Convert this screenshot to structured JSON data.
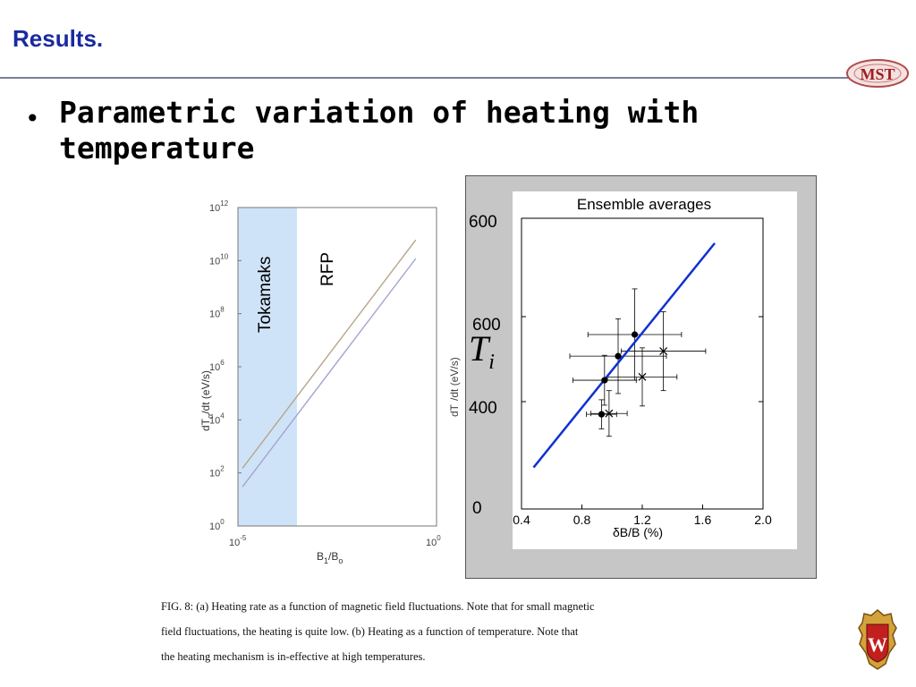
{
  "slide": {
    "title": "Results.",
    "bullet": "Parametric variation of heating with temperature",
    "logo_text": "MST",
    "crest_letter": "W"
  },
  "figure_a": {
    "ylabel": "dT",
    "ylabel_sub": "α",
    "ylabel_rest": "/dt   (eV/s)",
    "xlabel_main": "B",
    "xlabel_sub1": "1",
    "xlabel_mid": "/B",
    "xlabel_sub2": "o",
    "region_tokamak": "Tokamaks",
    "region_rfp": "RFP",
    "ytick_base": "10",
    "yticks_exp": [
      "0",
      "2",
      "4",
      "6",
      "8",
      "10",
      "12"
    ],
    "xticks": [
      {
        "base": "10",
        "exp": "-5"
      },
      {
        "base": "10",
        "exp": "0"
      }
    ]
  },
  "figure_b": {
    "title": "Ensemble averages",
    "xlabel": "δB/B (%)",
    "ylabel_fragment": "dT",
    "ylabel_rest": "/dt   (eV/s)",
    "xticks": [
      "0.4",
      "0.8",
      "1.2",
      "1.6",
      "2.0"
    ],
    "overlay_yticks": [
      "600",
      "600",
      "400",
      "0"
    ],
    "ti_label": "T",
    "ti_sub": "i"
  },
  "chart_data": [
    {
      "type": "line",
      "xlabel": "B1/Bo",
      "ylabel": "dTα/dt (eV/s)",
      "xscale": "log",
      "yscale": "log",
      "xlim": [
        1e-05,
        1
      ],
      "ylim": [
        1,
        1000000000000.0
      ],
      "regions": [
        {
          "label": "Tokamaks",
          "color": "#cfe3f8"
        },
        {
          "label": "RFP"
        }
      ],
      "series": [
        {
          "color": "#b5a58a",
          "x": [
            1.3e-05,
            0.3
          ],
          "y": [
            150,
            60000000000.0
          ]
        },
        {
          "color": "#a3a3d0",
          "x": [
            1.3e-05,
            0.3
          ],
          "y": [
            30,
            12000000000.0
          ]
        }
      ]
    },
    {
      "type": "scatter",
      "title": "Ensemble averages",
      "xlabel": "δB/B (%)",
      "xlim": [
        0.4,
        2.0
      ],
      "xticks": [
        0.4,
        0.8,
        1.2,
        1.6,
        2.0
      ],
      "series": [
        {
          "marker": "filled-circle",
          "points": [
            {
              "x": 0.93,
              "y": 228,
              "xerr": 0.1,
              "yerr": 35
            },
            {
              "x": 0.95,
              "y": 310,
              "xerr": 0.21,
              "yerr": 60
            },
            {
              "x": 1.04,
              "y": 368,
              "xerr": 0.32,
              "yerr": 90
            },
            {
              "x": 1.15,
              "y": 420,
              "xerr": 0.31,
              "yerr": 110
            }
          ]
        },
        {
          "marker": "cross",
          "points": [
            {
              "x": 0.98,
              "y": 230,
              "xerr": 0.12,
              "yerr": 55
            },
            {
              "x": 1.2,
              "y": 318,
              "xerr": 0.23,
              "yerr": 70
            },
            {
              "x": 1.34,
              "y": 380,
              "xerr": 0.28,
              "yerr": 95
            }
          ]
        }
      ],
      "fit_line": {
        "color": "#1030d0",
        "x": [
          0.48,
          1.68
        ],
        "y": [
          100,
          640
        ]
      }
    }
  ]
}
